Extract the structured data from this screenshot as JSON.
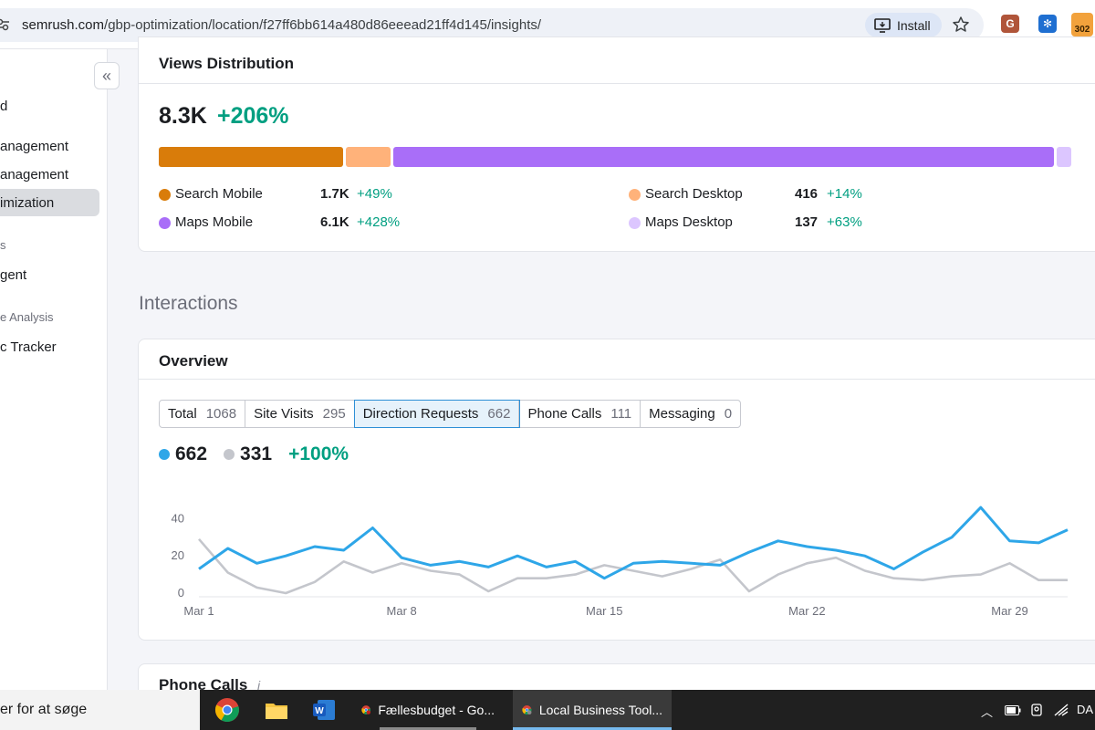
{
  "browser": {
    "url_host": "semrush.com",
    "url_path": "/gbp-optimization/location/f27ff6bb614a480d86eeead21ff4d145/insights/",
    "install_label": "Install",
    "ext_g": "G",
    "ext_badge": "302"
  },
  "sidebar": {
    "items": [
      {
        "label": "d"
      },
      {
        "label": "anagement"
      },
      {
        "label": "anagement"
      },
      {
        "label": "imization"
      },
      {
        "label": "s"
      },
      {
        "label": "gent"
      },
      {
        "label": "e Analysis"
      },
      {
        "label": "c Tracker"
      }
    ]
  },
  "views": {
    "title": "Views Distribution",
    "total": "8.3K",
    "change": "+206%",
    "segments": [
      {
        "name": "Search Mobile",
        "value": "1.7K",
        "change": "+49%",
        "color": "#d97c0a",
        "share": 1700
      },
      {
        "name": "Search Desktop",
        "value": "416",
        "change": "+14%",
        "color": "#ffb27a",
        "share": 416
      },
      {
        "name": "Maps Mobile",
        "value": "6.1K",
        "change": "+428%",
        "color": "#a96ef8",
        "share": 6100
      },
      {
        "name": "Maps Desktop",
        "value": "137",
        "change": "+63%",
        "color": "#dcc6ff",
        "share": 137
      }
    ]
  },
  "interactions": {
    "section_title": "Interactions",
    "overview_title": "Overview",
    "tabs": [
      {
        "label": "Total",
        "count": "1068"
      },
      {
        "label": "Site Visits",
        "count": "295"
      },
      {
        "label": "Direction Requests",
        "count": "662",
        "active": true
      },
      {
        "label": "Phone Calls",
        "count": "111"
      },
      {
        "label": "Messaging",
        "count": "0"
      }
    ],
    "current_value": "662",
    "previous_value": "331",
    "change": "+100%",
    "current_color": "#2ea6e8",
    "previous_color": "#c4c6cc"
  },
  "chart_data": {
    "type": "line",
    "x_labels": [
      "Mar 1",
      "Mar 8",
      "Mar 15",
      "Mar 22",
      "Mar 29"
    ],
    "x_label_index": [
      0,
      7,
      14,
      21,
      28
    ],
    "y_ticks": [
      0,
      20,
      40
    ],
    "ylim": [
      0,
      48
    ],
    "grid": false,
    "series": [
      {
        "values": [
          13,
          24,
          16,
          20,
          25,
          23,
          35,
          19,
          15,
          17,
          14,
          20,
          14,
          17,
          8,
          16,
          17,
          16,
          15,
          22,
          28,
          25,
          23,
          20,
          13,
          22,
          30,
          46,
          28,
          27,
          34
        ],
        "color": "#2ea6e8"
      },
      {
        "values": [
          29,
          11,
          3,
          0,
          6,
          17,
          11,
          16,
          12,
          10,
          1,
          8,
          8,
          10,
          15,
          12,
          9,
          13,
          18,
          1,
          10,
          16,
          19,
          12,
          8,
          7,
          9,
          10,
          16,
          7,
          7
        ],
        "color": "#c4c6cc"
      }
    ]
  },
  "phone": {
    "title": "Phone Calls",
    "info": "i"
  },
  "taskbar": {
    "search_text": "er for at søge",
    "app1": "Fællesbudget - Go...",
    "app2": "Local Business Tool...",
    "tray_lang": "DA"
  }
}
